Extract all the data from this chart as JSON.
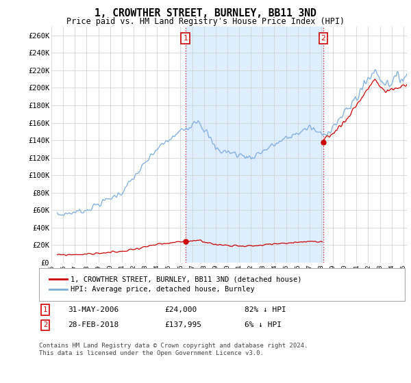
{
  "title": "1, CROWTHER STREET, BURNLEY, BB11 3ND",
  "subtitle": "Price paid vs. HM Land Registry's House Price Index (HPI)",
  "ylim": [
    0,
    270000
  ],
  "yticks": [
    0,
    20000,
    40000,
    60000,
    80000,
    100000,
    120000,
    140000,
    160000,
    180000,
    200000,
    220000,
    240000,
    260000
  ],
  "ytick_labels": [
    "£0",
    "£20K",
    "£40K",
    "£60K",
    "£80K",
    "£100K",
    "£120K",
    "£140K",
    "£160K",
    "£180K",
    "£200K",
    "£220K",
    "£240K",
    "£260K"
  ],
  "sale1_date": 2006.42,
  "sale1_price": 24000,
  "sale1_label": "1",
  "sale2_date": 2018.17,
  "sale2_price": 137995,
  "sale2_label": "2",
  "hpi_color": "#7aaddd",
  "sale_color": "#cc0000",
  "shade_color": "#ddeeff",
  "annotation_box_color": "#cc0000",
  "legend_label_red": "1, CROWTHER STREET, BURNLEY, BB11 3ND (detached house)",
  "legend_label_blue": "HPI: Average price, detached house, Burnley",
  "footer": "Contains HM Land Registry data © Crown copyright and database right 2024.\nThis data is licensed under the Open Government Licence v3.0.",
  "background_color": "#ffffff",
  "grid_color": "#cccccc",
  "xlim_left": 1995.5,
  "xlim_right": 2025.3
}
